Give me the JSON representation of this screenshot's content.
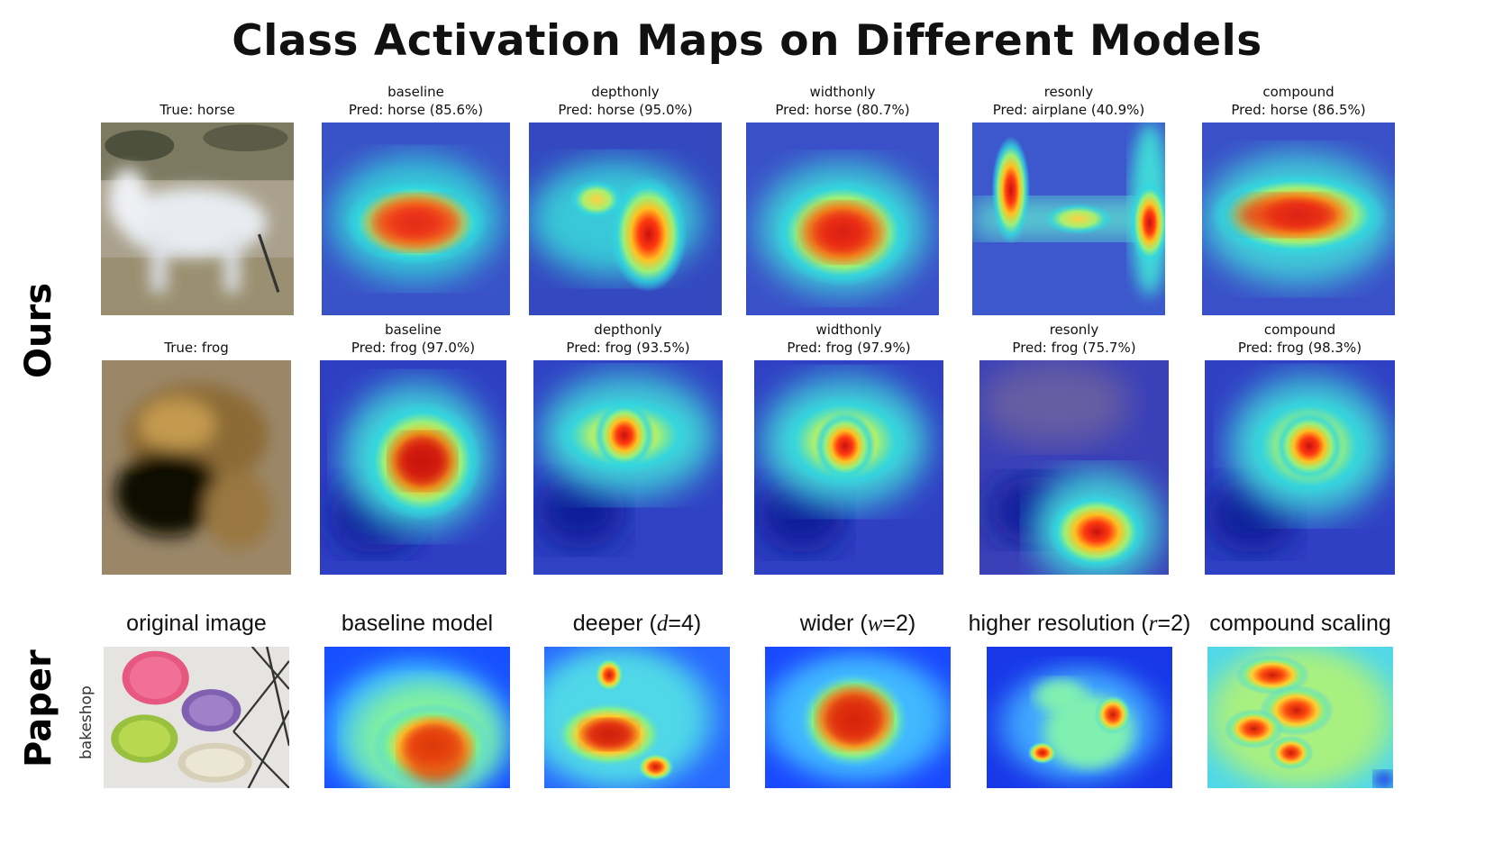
{
  "title": "Class Activation Maps on Different Models",
  "sections": {
    "ours": "Ours",
    "paper": "Paper",
    "paper_class": "bakeshop"
  },
  "row1": {
    "true_label": "True: horse",
    "models": [
      {
        "name": "baseline",
        "pred": "Pred: horse (85.6%)"
      },
      {
        "name": "depthonly",
        "pred": "Pred: horse (95.0%)"
      },
      {
        "name": "widthonly",
        "pred": "Pred: horse (80.7%)"
      },
      {
        "name": "resonly",
        "pred": "Pred: airplane (40.9%)"
      },
      {
        "name": "compound",
        "pred": "Pred: horse (86.5%)"
      }
    ]
  },
  "row2": {
    "true_label": "True: frog",
    "models": [
      {
        "name": "baseline",
        "pred": "Pred: frog (97.0%)"
      },
      {
        "name": "depthonly",
        "pred": "Pred: frog (93.5%)"
      },
      {
        "name": "widthonly",
        "pred": "Pred: frog (97.9%)"
      },
      {
        "name": "resonly",
        "pred": "Pred: frog (75.7%)"
      },
      {
        "name": "compound",
        "pred": "Pred: frog (98.3%)"
      }
    ]
  },
  "paper_row": {
    "original": "original image",
    "baseline": "baseline model",
    "deeper": "deeper (",
    "deeper_var": "d",
    "deeper_val": "=4)",
    "wider": "wider (",
    "wider_var": "w",
    "wider_val": "=2)",
    "higher": "higher resolution (",
    "higher_var": "r",
    "higher_val": "=2)",
    "compound": "compound scaling"
  },
  "colors": {
    "cam_low": "#2a3fd0",
    "cam_mid": "#3fd6c8",
    "cam_high": "#e02010",
    "paper_bg": "#2fa0ff"
  }
}
